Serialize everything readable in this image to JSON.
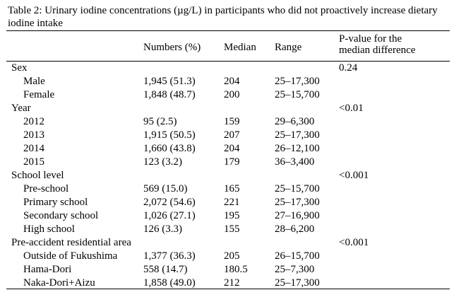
{
  "table": {
    "caption": "Table 2: Urinary iodine concentrations (µg/L) in participants who did not proactively increase dietary iodine intake",
    "columns": {
      "numbers": "Numbers (%)",
      "median": "Median",
      "range": "Range",
      "pvalue_line1": "P-value for the",
      "pvalue_line2": "median difference"
    },
    "groups": [
      {
        "label": "Sex",
        "pvalue": "0.24",
        "rows": [
          {
            "label": "Male",
            "numbers": "1,945 (51.3)",
            "median": "204",
            "range": "25–17,300"
          },
          {
            "label": "Female",
            "numbers": "1,848 (48.7)",
            "median": "200",
            "range": "25–15,700"
          }
        ]
      },
      {
        "label": "Year",
        "pvalue": "<0.01",
        "rows": [
          {
            "label": "2012",
            "numbers": "95 (2.5)",
            "median": "159",
            "range": "29–6,300"
          },
          {
            "label": "2013",
            "numbers": "1,915 (50.5)",
            "median": "207",
            "range": "25–17,300"
          },
          {
            "label": "2014",
            "numbers": "1,660 (43.8)",
            "median": "204",
            "range": "26–12,100"
          },
          {
            "label": "2015",
            "numbers": "123 (3.2)",
            "median": "179",
            "range": "36–3,400"
          }
        ]
      },
      {
        "label": "School level",
        "pvalue": "<0.001",
        "rows": [
          {
            "label": "Pre-school",
            "numbers": "569 (15.0)",
            "median": "165",
            "range": "25–15,700"
          },
          {
            "label": "Primary school",
            "numbers": "2,072 (54.6)",
            "median": "221",
            "range": "25–17,300"
          },
          {
            "label": "Secondary school",
            "numbers": "1,026 (27.1)",
            "median": "195",
            "range": "27–16,900"
          },
          {
            "label": "High school",
            "numbers": "126 (3.3)",
            "median": "155",
            "range": "28–6,200"
          }
        ]
      },
      {
        "label": "Pre-accident residential area",
        "pvalue": "<0.001",
        "rows": [
          {
            "label": "Outside of Fukushima",
            "numbers": "1,377 (36.3)",
            "median": "205",
            "range": "26–15,700"
          },
          {
            "label": "Hama-Dori",
            "numbers": "558 (14.7)",
            "median": "180.5",
            "range": "25–7,300"
          },
          {
            "label": "Naka-Dori+Aizu",
            "numbers": "1,858 (49.0)",
            "median": "212",
            "range": "25–17,300"
          }
        ]
      }
    ]
  }
}
